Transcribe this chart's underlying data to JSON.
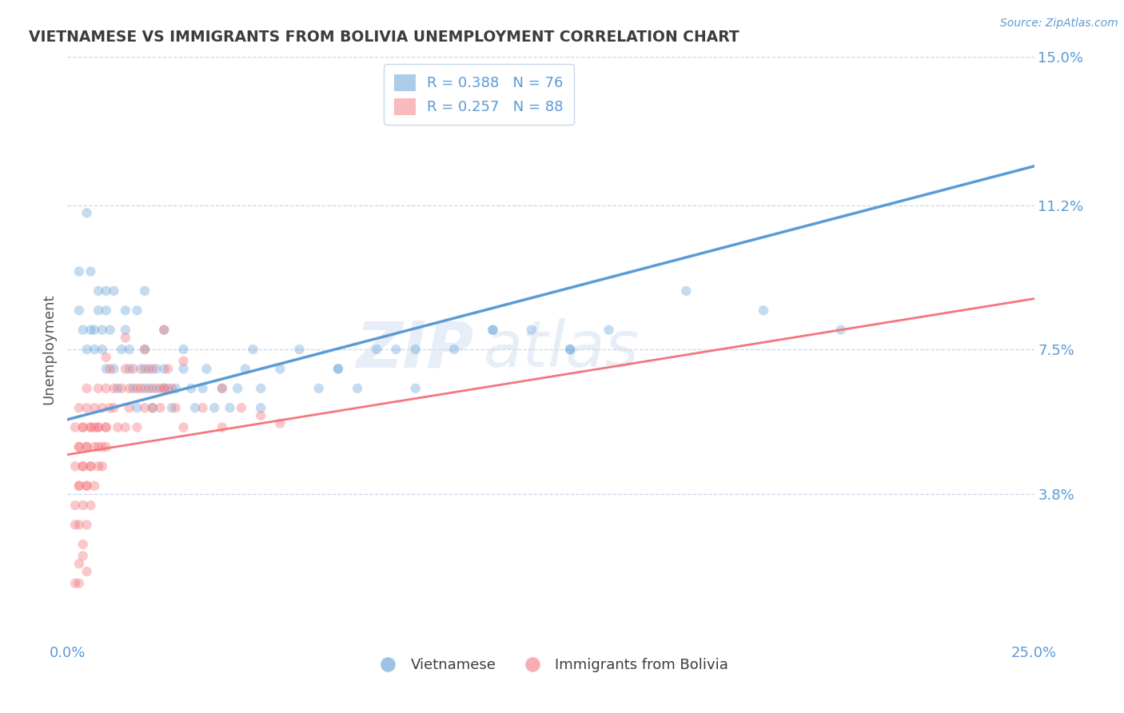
{
  "title": "VIETNAMESE VS IMMIGRANTS FROM BOLIVIA UNEMPLOYMENT CORRELATION CHART",
  "source": "Source: ZipAtlas.com",
  "ylabel": "Unemployment",
  "watermark": "ZIPatlas",
  "xlim": [
    0.0,
    0.25
  ],
  "ylim": [
    0.0,
    0.15
  ],
  "xtick_labels": [
    "0.0%",
    "25.0%"
  ],
  "ytick_labels": [
    "3.8%",
    "7.5%",
    "11.2%",
    "15.0%"
  ],
  "ytick_values": [
    0.038,
    0.075,
    0.112,
    0.15
  ],
  "legend_r_entries": [
    {
      "label": "R = 0.388",
      "n": "N = 76",
      "color": "#5b9bd5"
    },
    {
      "label": "R = 0.257",
      "n": "N = 88",
      "color": "#f4777f"
    }
  ],
  "legend_labels_bottom": [
    "Vietnamese",
    "Immigrants from Bolivia"
  ],
  "blue_color": "#5b9bd5",
  "pink_color": "#f4777f",
  "title_color": "#3c3c3c",
  "axis_label_color": "#5b9bd5",
  "tick_label_color": "#5b9bd5",
  "grid_color": "#c8d8ea",
  "background_color": "#ffffff",
  "blue_scatter": [
    [
      0.003,
      0.095
    ],
    [
      0.005,
      0.11
    ],
    [
      0.006,
      0.095
    ],
    [
      0.007,
      0.08
    ],
    [
      0.008,
      0.09
    ],
    [
      0.009,
      0.075
    ],
    [
      0.01,
      0.085
    ],
    [
      0.01,
      0.07
    ],
    [
      0.011,
      0.08
    ],
    [
      0.012,
      0.07
    ],
    [
      0.013,
      0.065
    ],
    [
      0.014,
      0.075
    ],
    [
      0.015,
      0.08
    ],
    [
      0.016,
      0.07
    ],
    [
      0.016,
      0.075
    ],
    [
      0.017,
      0.065
    ],
    [
      0.018,
      0.06
    ],
    [
      0.019,
      0.07
    ],
    [
      0.02,
      0.075
    ],
    [
      0.02,
      0.065
    ],
    [
      0.021,
      0.07
    ],
    [
      0.022,
      0.065
    ],
    [
      0.022,
      0.06
    ],
    [
      0.023,
      0.07
    ],
    [
      0.024,
      0.065
    ],
    [
      0.025,
      0.07
    ],
    [
      0.026,
      0.065
    ],
    [
      0.027,
      0.06
    ],
    [
      0.028,
      0.065
    ],
    [
      0.03,
      0.07
    ],
    [
      0.032,
      0.065
    ],
    [
      0.033,
      0.06
    ],
    [
      0.035,
      0.065
    ],
    [
      0.036,
      0.07
    ],
    [
      0.038,
      0.06
    ],
    [
      0.04,
      0.065
    ],
    [
      0.042,
      0.06
    ],
    [
      0.044,
      0.065
    ],
    [
      0.046,
      0.07
    ],
    [
      0.048,
      0.075
    ],
    [
      0.05,
      0.065
    ],
    [
      0.055,
      0.07
    ],
    [
      0.06,
      0.075
    ],
    [
      0.065,
      0.065
    ],
    [
      0.07,
      0.07
    ],
    [
      0.075,
      0.065
    ],
    [
      0.08,
      0.075
    ],
    [
      0.085,
      0.075
    ],
    [
      0.09,
      0.065
    ],
    [
      0.1,
      0.075
    ],
    [
      0.11,
      0.08
    ],
    [
      0.12,
      0.08
    ],
    [
      0.13,
      0.075
    ],
    [
      0.14,
      0.08
    ],
    [
      0.003,
      0.085
    ],
    [
      0.004,
      0.08
    ],
    [
      0.005,
      0.075
    ],
    [
      0.006,
      0.08
    ],
    [
      0.007,
      0.075
    ],
    [
      0.008,
      0.085
    ],
    [
      0.009,
      0.08
    ],
    [
      0.01,
      0.09
    ],
    [
      0.012,
      0.09
    ],
    [
      0.015,
      0.085
    ],
    [
      0.018,
      0.085
    ],
    [
      0.02,
      0.09
    ],
    [
      0.025,
      0.08
    ],
    [
      0.03,
      0.075
    ],
    [
      0.16,
      0.09
    ],
    [
      0.18,
      0.085
    ],
    [
      0.2,
      0.08
    ],
    [
      0.05,
      0.06
    ],
    [
      0.07,
      0.07
    ],
    [
      0.09,
      0.075
    ],
    [
      0.11,
      0.08
    ],
    [
      0.13,
      0.075
    ]
  ],
  "pink_scatter": [
    [
      0.002,
      0.055
    ],
    [
      0.003,
      0.06
    ],
    [
      0.004,
      0.055
    ],
    [
      0.005,
      0.065
    ],
    [
      0.005,
      0.05
    ],
    [
      0.006,
      0.055
    ],
    [
      0.007,
      0.06
    ],
    [
      0.008,
      0.065
    ],
    [
      0.008,
      0.055
    ],
    [
      0.009,
      0.06
    ],
    [
      0.01,
      0.065
    ],
    [
      0.01,
      0.055
    ],
    [
      0.011,
      0.07
    ],
    [
      0.012,
      0.065
    ],
    [
      0.012,
      0.06
    ],
    [
      0.013,
      0.055
    ],
    [
      0.014,
      0.065
    ],
    [
      0.015,
      0.055
    ],
    [
      0.015,
      0.07
    ],
    [
      0.016,
      0.065
    ],
    [
      0.016,
      0.06
    ],
    [
      0.017,
      0.07
    ],
    [
      0.018,
      0.065
    ],
    [
      0.018,
      0.055
    ],
    [
      0.019,
      0.065
    ],
    [
      0.02,
      0.07
    ],
    [
      0.02,
      0.06
    ],
    [
      0.021,
      0.065
    ],
    [
      0.022,
      0.06
    ],
    [
      0.022,
      0.07
    ],
    [
      0.023,
      0.065
    ],
    [
      0.024,
      0.06
    ],
    [
      0.025,
      0.065
    ],
    [
      0.026,
      0.07
    ],
    [
      0.027,
      0.065
    ],
    [
      0.028,
      0.06
    ],
    [
      0.003,
      0.05
    ],
    [
      0.004,
      0.055
    ],
    [
      0.005,
      0.06
    ],
    [
      0.006,
      0.055
    ],
    [
      0.007,
      0.05
    ],
    [
      0.008,
      0.055
    ],
    [
      0.009,
      0.05
    ],
    [
      0.01,
      0.055
    ],
    [
      0.011,
      0.06
    ],
    [
      0.002,
      0.045
    ],
    [
      0.003,
      0.05
    ],
    [
      0.004,
      0.045
    ],
    [
      0.005,
      0.05
    ],
    [
      0.006,
      0.045
    ],
    [
      0.007,
      0.055
    ],
    [
      0.008,
      0.05
    ],
    [
      0.009,
      0.045
    ],
    [
      0.01,
      0.05
    ],
    [
      0.003,
      0.04
    ],
    [
      0.004,
      0.045
    ],
    [
      0.005,
      0.04
    ],
    [
      0.006,
      0.045
    ],
    [
      0.007,
      0.04
    ],
    [
      0.008,
      0.045
    ],
    [
      0.002,
      0.035
    ],
    [
      0.003,
      0.04
    ],
    [
      0.004,
      0.035
    ],
    [
      0.005,
      0.04
    ],
    [
      0.006,
      0.035
    ],
    [
      0.002,
      0.03
    ],
    [
      0.003,
      0.03
    ],
    [
      0.004,
      0.025
    ],
    [
      0.005,
      0.03
    ],
    [
      0.003,
      0.02
    ],
    [
      0.004,
      0.022
    ],
    [
      0.005,
      0.018
    ],
    [
      0.002,
      0.015
    ],
    [
      0.003,
      0.015
    ],
    [
      0.025,
      0.08
    ],
    [
      0.03,
      0.072
    ],
    [
      0.02,
      0.075
    ],
    [
      0.015,
      0.078
    ],
    [
      0.01,
      0.073
    ],
    [
      0.04,
      0.065
    ],
    [
      0.035,
      0.06
    ],
    [
      0.025,
      0.065
    ],
    [
      0.03,
      0.055
    ],
    [
      0.04,
      0.055
    ],
    [
      0.045,
      0.06
    ],
    [
      0.05,
      0.058
    ],
    [
      0.055,
      0.056
    ]
  ],
  "blue_line_x": [
    0.0,
    0.25
  ],
  "blue_line_y": [
    0.057,
    0.122
  ],
  "pink_line_x": [
    0.0,
    0.25
  ],
  "pink_line_y": [
    0.048,
    0.088
  ]
}
